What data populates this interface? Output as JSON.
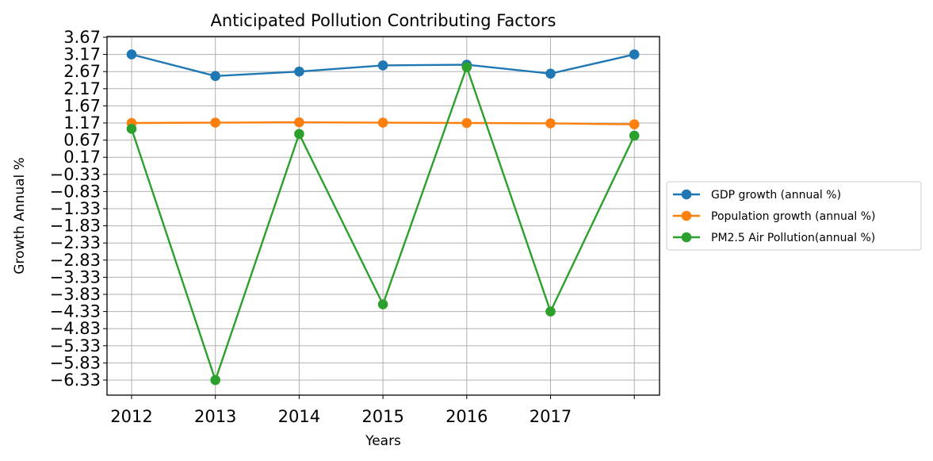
{
  "chart_data": {
    "type": "line",
    "title": "Anticipated Pollution Contributing Factors",
    "xlabel": "Years",
    "ylabel": "Growth Annual %",
    "x": [
      0,
      1,
      2,
      3,
      4,
      5,
      6
    ],
    "x_tick_labels": [
      "2012",
      "2013",
      "2014",
      "2015",
      "2016",
      "2017",
      ""
    ],
    "y_ticks": [
      "3.67",
      "3.17",
      "2.67",
      "2.17",
      "1.67",
      "1.17",
      "0.67",
      "0.17",
      "−0.33",
      "−0.83",
      "−1.33",
      "−1.83",
      "−2.33",
      "−2.83",
      "−3.33",
      "−3.83",
      "−4.33",
      "−4.83",
      "−5.33",
      "−5.83",
      "−6.33"
    ],
    "y_tick_labels_mode": "category_axis",
    "grid": true,
    "legend_placement": "outside-right",
    "series": [
      {
        "name": "GDP growth (annual %)",
        "color": "#1f77b4",
        "values": [
          3.17,
          2.54,
          2.67,
          2.85,
          2.87,
          2.61,
          3.17
        ]
      },
      {
        "name": "Population growth (annual %)",
        "color": "#ff7f0e",
        "values": [
          1.17,
          1.18,
          1.19,
          1.18,
          1.17,
          1.16,
          1.13
        ]
      },
      {
        "name": "PM2.5 Air Pollution(annual %)",
        "color": "#2ca02c",
        "values": [
          1.0,
          -6.33,
          0.85,
          -4.12,
          2.8,
          -4.33,
          0.8
        ]
      }
    ]
  }
}
